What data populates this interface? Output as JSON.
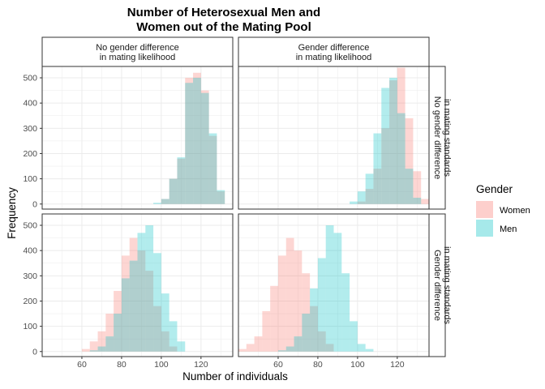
{
  "colors": {
    "women": "#F8766D",
    "men": "#00BFC4",
    "strip_fill": "#ffffff",
    "panel_border": "#333333",
    "grid": "#ebebeb"
  },
  "chart_data": {
    "type": "histogram",
    "title_lines": [
      "Number of Heterosexual Men and",
      "Women out of the Mating Pool"
    ],
    "xlabel": "Number of individuals",
    "ylabel": "Frequency",
    "xlim": [
      40,
      136
    ],
    "ylim": [
      -20,
      545
    ],
    "x_ticks": [
      60,
      80,
      100,
      120
    ],
    "y_ticks": [
      0,
      100,
      200,
      300,
      400,
      500
    ],
    "bin_width": 4,
    "column_strips": [
      [
        "No gender difference",
        "in mating likelihood"
      ],
      [
        "Gender difference",
        "in mating likelihood"
      ]
    ],
    "row_strips": [
      [
        "No gender difference",
        "in mating standards"
      ],
      [
        "Gender difference",
        "in mating standards"
      ]
    ],
    "legend": {
      "title": "Gender",
      "items": [
        "Women",
        "Men"
      ]
    },
    "panels": [
      {
        "row": 0,
        "col": 0,
        "series": [
          {
            "name": "Women",
            "bins": [
              [
                102,
                20
              ],
              [
                106,
                100
              ],
              [
                110,
                180
              ],
              [
                114,
                500
              ],
              [
                118,
                520
              ],
              [
                122,
                450
              ],
              [
                126,
                270
              ],
              [
                130,
                50
              ]
            ]
          },
          {
            "name": "Men",
            "bins": [
              [
                98,
                5
              ],
              [
                102,
                20
              ],
              [
                106,
                100
              ],
              [
                110,
                185
              ],
              [
                114,
                480
              ],
              [
                118,
                500
              ],
              [
                122,
                440
              ],
              [
                126,
                280
              ],
              [
                130,
                55
              ]
            ]
          }
        ]
      },
      {
        "row": 0,
        "col": 1,
        "series": [
          {
            "name": "Women",
            "bins": [
              [
                102,
                10
              ],
              [
                106,
                60
              ],
              [
                110,
                140
              ],
              [
                114,
                300
              ],
              [
                118,
                490
              ],
              [
                122,
                540
              ],
              [
                126,
                340
              ],
              [
                130,
                130
              ],
              [
                134,
                20
              ]
            ]
          },
          {
            "name": "Men",
            "bins": [
              [
                98,
                10
              ],
              [
                102,
                50
              ],
              [
                106,
                120
              ],
              [
                110,
                280
              ],
              [
                114,
                460
              ],
              [
                118,
                500
              ],
              [
                122,
                360
              ],
              [
                126,
                140
              ],
              [
                130,
                25
              ]
            ]
          }
        ]
      },
      {
        "row": 1,
        "col": 0,
        "series": [
          {
            "name": "Women",
            "bins": [
              [
                62,
                10
              ],
              [
                66,
                40
              ],
              [
                70,
                80
              ],
              [
                74,
                150
              ],
              [
                78,
                240
              ],
              [
                82,
                380
              ],
              [
                86,
                450
              ],
              [
                90,
                400
              ],
              [
                94,
                320
              ],
              [
                98,
                180
              ],
              [
                102,
                80
              ],
              [
                106,
                20
              ]
            ]
          },
          {
            "name": "Men",
            "bins": [
              [
                66,
                5
              ],
              [
                70,
                20
              ],
              [
                74,
                60
              ],
              [
                78,
                150
              ],
              [
                82,
                290
              ],
              [
                86,
                360
              ],
              [
                90,
                470
              ],
              [
                94,
                500
              ],
              [
                98,
                390
              ],
              [
                102,
                230
              ],
              [
                106,
                120
              ],
              [
                110,
                40
              ]
            ]
          }
        ]
      },
      {
        "row": 1,
        "col": 1,
        "series": [
          {
            "name": "Women",
            "bins": [
              [
                42,
                10
              ],
              [
                46,
                30
              ],
              [
                50,
                60
              ],
              [
                54,
                160
              ],
              [
                58,
                260
              ],
              [
                62,
                380
              ],
              [
                66,
                450
              ],
              [
                70,
                400
              ],
              [
                74,
                310
              ],
              [
                78,
                180
              ],
              [
                82,
                80
              ],
              [
                86,
                30
              ]
            ]
          },
          {
            "name": "Men",
            "bins": [
              [
                62,
                5
              ],
              [
                66,
                20
              ],
              [
                70,
                60
              ],
              [
                74,
                150
              ],
              [
                78,
                250
              ],
              [
                82,
                370
              ],
              [
                86,
                500
              ],
              [
                90,
                470
              ],
              [
                94,
                310
              ],
              [
                98,
                120
              ],
              [
                102,
                30
              ],
              [
                106,
                10
              ]
            ]
          }
        ]
      }
    ]
  }
}
